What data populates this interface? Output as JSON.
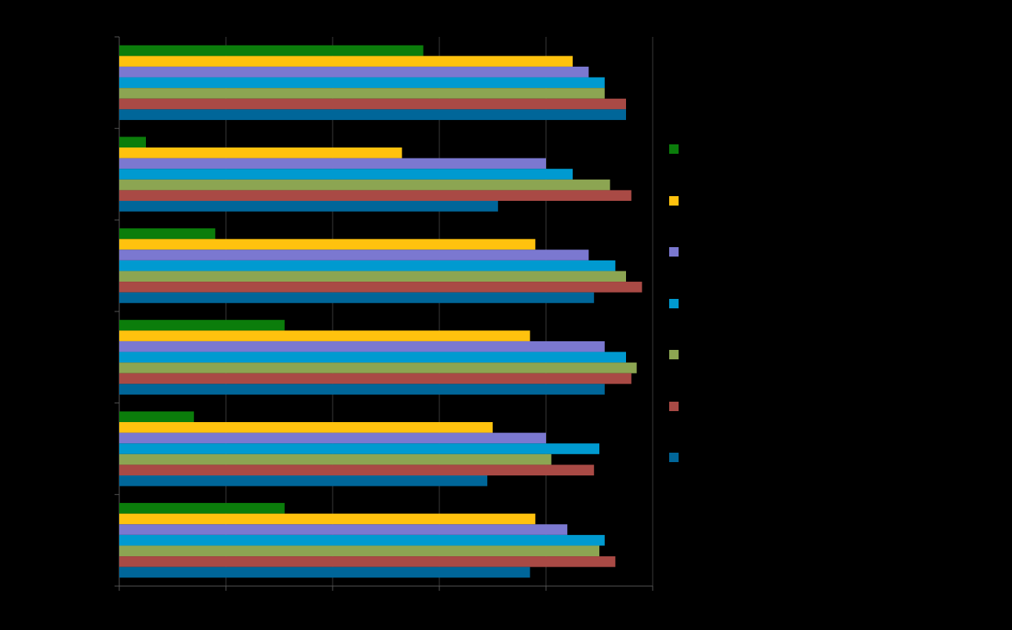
{
  "chart_data": {
    "type": "bar",
    "orientation": "horizontal",
    "title": "",
    "xlabel": "",
    "ylabel": "",
    "xlim": [
      0,
      100
    ],
    "grid": true,
    "legend_position": "right",
    "background": "#000000",
    "categories": [
      "",
      "",
      "",
      "",
      "",
      ""
    ],
    "series": [
      {
        "color": "#0b7d0b",
        "values": [
          57,
          5,
          18,
          31,
          14,
          31
        ]
      },
      {
        "color": "#ffc20e",
        "values": [
          85,
          53,
          78,
          77,
          70,
          78
        ]
      },
      {
        "color": "#7b78d0",
        "values": [
          88,
          80,
          88,
          91,
          80,
          84
        ]
      },
      {
        "color": "#009ad0",
        "values": [
          91,
          85,
          93,
          95,
          90,
          91
        ]
      },
      {
        "color": "#8ca552",
        "values": [
          91,
          92,
          95,
          97,
          81,
          90
        ]
      },
      {
        "color": "#a94a45",
        "values": [
          95,
          96,
          98,
          96,
          89,
          93
        ]
      },
      {
        "color": "#006699",
        "values": [
          95,
          71,
          89,
          91,
          69,
          77
        ]
      }
    ]
  }
}
